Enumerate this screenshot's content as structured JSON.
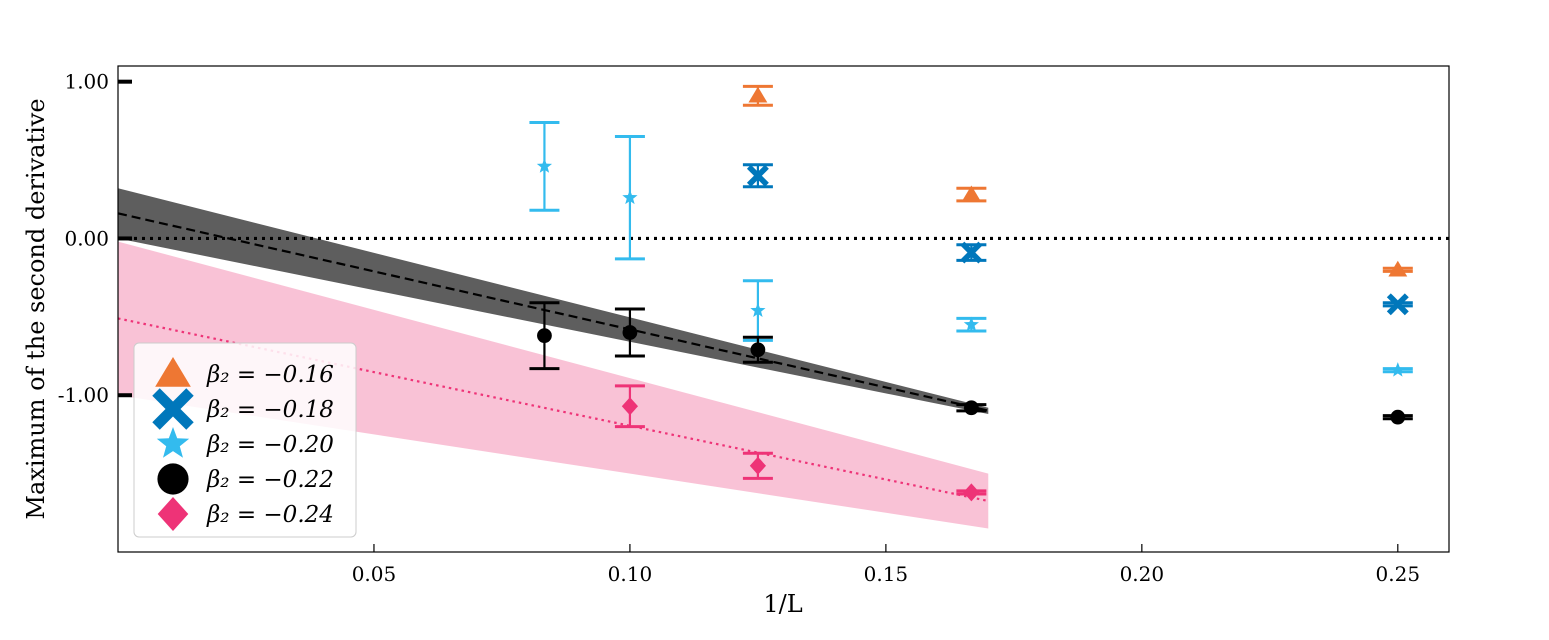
{
  "chart_data": {
    "type": "scatter",
    "xlabel": "1/L",
    "ylabel": "Maximum of the second derivative",
    "xlim": [
      0.0,
      0.26
    ],
    "ylim": [
      -2.0,
      1.1
    ],
    "xticks": [
      {
        "value": 0.05,
        "label": "0.05"
      },
      {
        "value": 0.1,
        "label": "0.10"
      },
      {
        "value": 0.15,
        "label": "0.15"
      },
      {
        "value": 0.2,
        "label": "0.20"
      },
      {
        "value": 0.25,
        "label": "0.25"
      }
    ],
    "yticks": [
      {
        "value": 1.0,
        "label": "1.00"
      },
      {
        "value": 0.0,
        "label": "0.00"
      },
      {
        "value": -1.0,
        "label": "-1.00"
      }
    ],
    "reference_line": {
      "y": 0.0,
      "style": "dotted",
      "color": "#000000"
    },
    "series": [
      {
        "name": "β₂ = −0.16",
        "legend": "β₂ = −0.16",
        "marker": "triangle",
        "color": "#EE7733",
        "points": [
          {
            "x": 0.125,
            "y": 0.91,
            "err": 0.06
          },
          {
            "x": 0.1667,
            "y": 0.28,
            "err": 0.04
          },
          {
            "x": 0.25,
            "y": -0.2,
            "err": 0.01
          }
        ]
      },
      {
        "name": "β₂ = −0.18",
        "legend": "β₂ = −0.18",
        "marker": "x",
        "color": "#0077BB",
        "points": [
          {
            "x": 0.125,
            "y": 0.4,
            "err": 0.07
          },
          {
            "x": 0.1667,
            "y": -0.09,
            "err": 0.05
          },
          {
            "x": 0.25,
            "y": -0.42,
            "err": 0.01
          }
        ]
      },
      {
        "name": "β₂ = −0.20",
        "legend": "β₂ = −0.20",
        "marker": "star",
        "color": "#33BBEE",
        "points": [
          {
            "x": 0.0833,
            "y": 0.46,
            "err": 0.28
          },
          {
            "x": 0.1,
            "y": 0.26,
            "err": 0.39
          },
          {
            "x": 0.125,
            "y": -0.46,
            "err": 0.19
          },
          {
            "x": 0.1667,
            "y": -0.55,
            "err": 0.04
          },
          {
            "x": 0.25,
            "y": -0.84,
            "err": 0.01
          }
        ]
      },
      {
        "name": "β₂ = −0.22",
        "legend": "β₂ = −0.22",
        "marker": "circle",
        "color": "#000000",
        "points": [
          {
            "x": 0.0833,
            "y": -0.62,
            "err": 0.21
          },
          {
            "x": 0.1,
            "y": -0.6,
            "err": 0.15
          },
          {
            "x": 0.125,
            "y": -0.71,
            "err": 0.08
          },
          {
            "x": 0.1667,
            "y": -1.08,
            "err": 0.02
          },
          {
            "x": 0.25,
            "y": -1.14,
            "err": 0.01
          }
        ],
        "fit": {
          "intercept": 0.16,
          "slope": -7.4,
          "x_range": [
            0.0,
            0.17
          ],
          "style": "dashed",
          "band_color": "#555555",
          "band_lower": [
            0.0,
            -1.12
          ],
          "band_upper": [
            0.32,
            -1.08
          ]
        }
      },
      {
        "name": "β₂ = −0.24",
        "legend": "β₂ = −0.24",
        "marker": "diamond",
        "color": "#EE3377",
        "points": [
          {
            "x": 0.1,
            "y": -1.07,
            "err": 0.13
          },
          {
            "x": 0.125,
            "y": -1.45,
            "err": 0.08
          },
          {
            "x": 0.1667,
            "y": -1.62,
            "err": 0.01
          }
        ],
        "fit": {
          "intercept": -0.51,
          "slope": -6.85,
          "x_range": [
            0.0,
            0.17
          ],
          "style": "dotted",
          "band_color": "#F9BFD4",
          "band_lower": [
            -1.0,
            -1.85
          ],
          "band_upper": [
            -0.02,
            -1.5
          ]
        }
      }
    ]
  }
}
